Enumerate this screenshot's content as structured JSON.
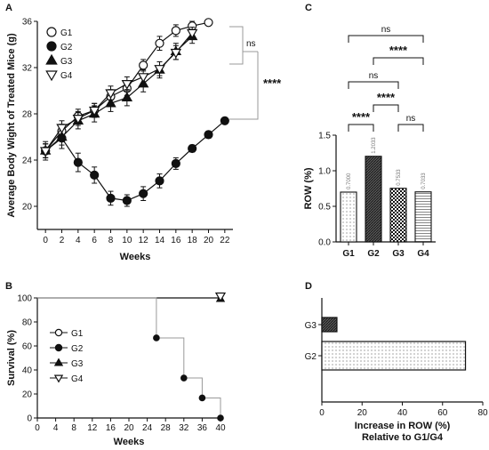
{
  "chart_data": [
    {
      "panel": "A",
      "type": "line",
      "xlabel": "Weeks",
      "ylabel": "Average Body Wight of Treated Mice (g)",
      "xticks": [
        0,
        2,
        4,
        6,
        8,
        10,
        12,
        14,
        16,
        18,
        20,
        22
      ],
      "yticks": [
        20,
        24,
        28,
        32,
        36
      ],
      "xlim": [
        -1,
        23
      ],
      "ylim": [
        18,
        36
      ],
      "series": [
        {
          "name": "G1",
          "marker": "circle-open",
          "x": [
            0,
            2,
            4,
            6,
            8,
            10,
            12,
            14,
            16,
            18,
            20
          ],
          "values": [
            24.8,
            26.5,
            27.8,
            28.3,
            29.5,
            30.2,
            32.2,
            34.1,
            35.2,
            35.6,
            35.9
          ],
          "err": [
            0.6,
            0.6,
            0.6,
            0.6,
            0.6,
            0.6,
            0.5,
            0.6,
            0.5,
            0.4,
            0.2
          ]
        },
        {
          "name": "G2",
          "marker": "circle-filled",
          "x": [
            0,
            2,
            4,
            6,
            8,
            10,
            12,
            14,
            16,
            18,
            20,
            22
          ],
          "values": [
            24.8,
            25.9,
            23.8,
            22.7,
            20.7,
            20.5,
            21.1,
            22.2,
            23.7,
            25.0,
            26.2,
            27.4
          ],
          "err": [
            0.8,
            0.9,
            0.8,
            0.7,
            0.6,
            0.5,
            0.6,
            0.6,
            0.5,
            0.3,
            0.3,
            0.2
          ]
        },
        {
          "name": "G3",
          "marker": "triangle-filled",
          "x": [
            0,
            2,
            4,
            6,
            8,
            10,
            12,
            14,
            16,
            18
          ],
          "values": [
            24.8,
            26.0,
            27.4,
            28.0,
            28.9,
            29.4,
            30.6,
            31.8,
            33.4,
            34.7
          ],
          "err": [
            0.6,
            0.7,
            0.7,
            0.7,
            0.7,
            0.7,
            0.7,
            0.7,
            0.7,
            0.6
          ]
        },
        {
          "name": "G4",
          "marker": "triangle-open",
          "x": [
            0,
            2,
            4,
            6,
            8,
            10,
            12,
            14,
            16,
            18
          ],
          "values": [
            24.8,
            26.8,
            27.6,
            28.3,
            29.8,
            30.6,
            31.2,
            31.9,
            33.3,
            35.0
          ],
          "err": [
            0.6,
            0.6,
            0.6,
            0.6,
            0.6,
            0.6,
            0.6,
            0.6,
            0.6,
            0.5
          ]
        }
      ],
      "annotations": [
        "ns",
        "****"
      ]
    },
    {
      "panel": "B",
      "type": "line",
      "xlabel": "Weeks",
      "ylabel": "Survival (%)",
      "xticks": [
        0,
        4,
        8,
        12,
        16,
        20,
        24,
        28,
        32,
        36,
        40
      ],
      "yticks": [
        0,
        20,
        40,
        60,
        80,
        100
      ],
      "xlim": [
        0,
        40
      ],
      "ylim": [
        0,
        100
      ],
      "series": [
        {
          "name": "G1",
          "marker": "circle-open",
          "x": [
            0,
            40
          ],
          "values": [
            100,
            100
          ]
        },
        {
          "name": "G2",
          "marker": "circle-filled",
          "x": [
            0,
            26,
            32,
            36,
            40
          ],
          "values": [
            100,
            66.7,
            33.3,
            16.7,
            0
          ]
        },
        {
          "name": "G3",
          "marker": "triangle-filled",
          "x": [
            0,
            40
          ],
          "values": [
            100,
            100
          ]
        },
        {
          "name": "G4",
          "marker": "triangle-open",
          "x": [
            0,
            40
          ],
          "values": [
            100,
            100
          ]
        }
      ]
    },
    {
      "panel": "C",
      "type": "bar",
      "ylabel": "ROW (%)",
      "categories": [
        "G1",
        "G2",
        "G3",
        "G4"
      ],
      "values": [
        0.7,
        1.2033,
        0.7533,
        0.7033
      ],
      "data_labels": [
        "0.7000",
        "1.2033",
        "0.7533",
        "0.7033"
      ],
      "yticks": [
        0.0,
        0.5,
        1.0,
        1.5
      ],
      "ylim": [
        0,
        1.5
      ],
      "annotations": [
        "ns",
        "****",
        "ns",
        "****",
        "****",
        "ns"
      ]
    },
    {
      "panel": "D",
      "type": "bar",
      "orientation": "horizontal",
      "xlabel": "Increase in ROW (%)",
      "xlabel2": "Relative to G1/G4",
      "categories": [
        "G3",
        "G2"
      ],
      "values": [
        7.5,
        71.4
      ],
      "xticks": [
        0,
        20,
        40,
        60,
        80
      ],
      "xlim": [
        0,
        80
      ]
    }
  ]
}
